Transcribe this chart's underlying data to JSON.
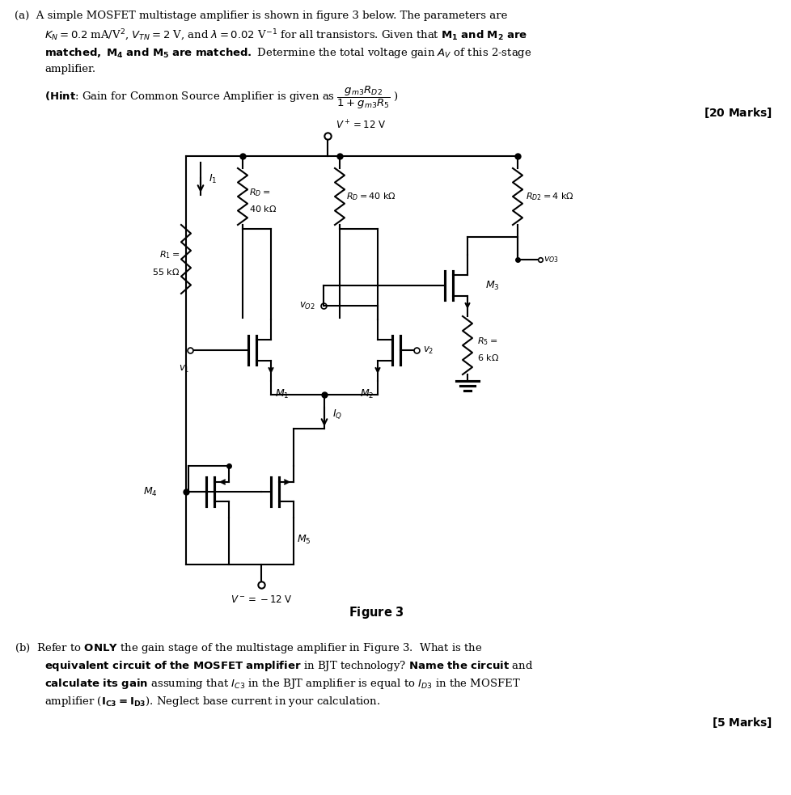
{
  "bg_color": "#ffffff",
  "fig_width": 9.79,
  "fig_height": 9.83,
  "dpi": 100,
  "lw": 1.5,
  "text_lines": {
    "a1": "(a)  A simple MOSFET multistage amplifier is shown in figure 3 below. The parameters are",
    "a2": "$K_N = 0.2$ mA/V$^2$, $V_{TN} = 2$ V, and $\\lambda = 0.02$ V$^{-1}$ for all transistors. Given that $\\boldsymbol{M_1}$ and $\\boldsymbol{M_2}$ are",
    "a3": "matched, $\\boldsymbol{M_4}$ and $\\boldsymbol{M_5}$ are matched. Determine the total voltage gain $A_V$ of this 2-stage",
    "a4": "amplifier.",
    "hint": "(Hint: Gain for Common Source Amplifier is given as $\\dfrac{g_{m3}R_{D2}}{1+ g_{m3}R_5}$ )",
    "marks_a": "[20 Marks]",
    "fig_label": "Figure 3",
    "b1": "(b)  Refer to ONLY the gain stage of the multistage amplifier in Figure 3.  What is the",
    "b2": "equivalent circuit of the MOSFET amplifier in BJT technology? Name the circuit and",
    "b3": "calculate its gain assuming that $I_{C3}$ in the BJT amplifier is equal to $I_{D3}$ in the MOSFET",
    "b4": "amplifier ($I_{C3}$=$I_{D3}$). Neglect base current in your calculation.",
    "marks_b": "[5 Marks]"
  }
}
